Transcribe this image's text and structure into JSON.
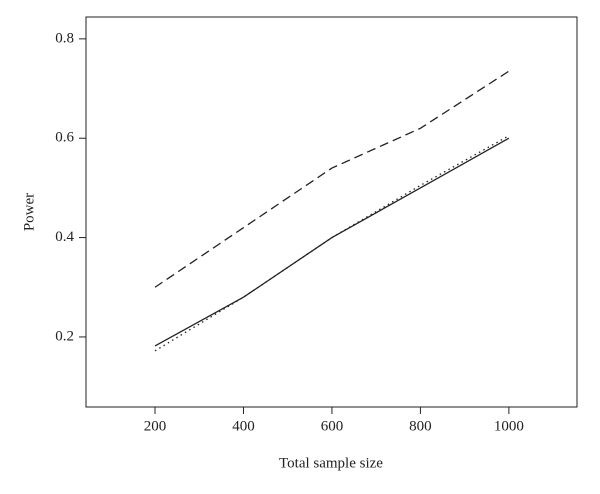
{
  "chart_data": {
    "type": "line",
    "x_label": "Total sample size",
    "y_label": "Power",
    "x": [
      200,
      400,
      600,
      800,
      1000
    ],
    "series": [
      {
        "color": "#222222",
        "dash": "dashed",
        "values": [
          0.3,
          0.42,
          0.54,
          0.62,
          0.735
        ]
      },
      {
        "color": "#222222",
        "dash": "solid",
        "values": [
          0.182,
          0.28,
          0.4,
          0.5,
          0.6
        ]
      },
      {
        "color": "#222222",
        "dash": "dotted",
        "values": [
          0.172,
          0.28,
          0.4,
          0.505,
          0.605
        ]
      }
    ],
    "xlim": [
      44,
      1154
    ],
    "xticks": [
      200,
      400,
      600,
      800,
      1000
    ],
    "ylim": [
      0.059,
      0.844
    ],
    "yticks": [
      0.2,
      0.4,
      0.6,
      0.8
    ],
    "grid": false
  }
}
